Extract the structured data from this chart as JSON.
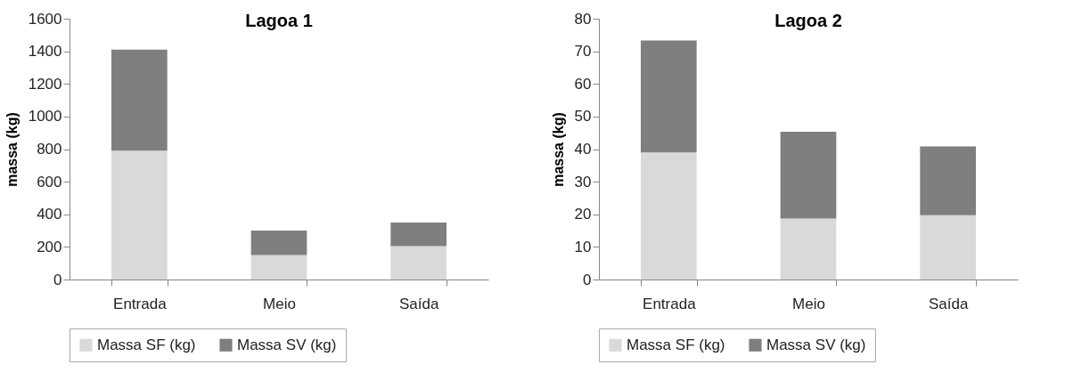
{
  "chart_data": [
    {
      "type": "bar",
      "title": "Lagoa 1",
      "ylabel": "massa (kg)",
      "categories": [
        "Entrada",
        "Meio",
        "Saída"
      ],
      "stacked": true,
      "ylim": [
        0,
        1600
      ],
      "yticks": [
        0,
        200,
        400,
        600,
        800,
        1000,
        1200,
        1400,
        1600
      ],
      "legend": "bottom",
      "series": [
        {
          "name": "Massa SF (kg)",
          "color": "#d9d9d9",
          "values": [
            790,
            150,
            205
          ]
        },
        {
          "name": "Massa SV (kg)",
          "color": "#7f7f7f",
          "values": [
            620,
            150,
            145
          ]
        }
      ]
    },
    {
      "type": "bar",
      "title": "Lagoa 2",
      "ylabel": "massa (kg)",
      "categories": [
        "Entrada",
        "Meio",
        "Saída"
      ],
      "stacked": true,
      "ylim": [
        0,
        80
      ],
      "yticks": [
        0,
        10,
        20,
        30,
        40,
        50,
        60,
        70,
        80
      ],
      "legend": "bottom",
      "series": [
        {
          "name": "Massa SF (kg)",
          "color": "#d9d9d9",
          "values": [
            39,
            18.7,
            19.7
          ]
        },
        {
          "name": "Massa SV (kg)",
          "color": "#7f7f7f",
          "values": [
            34.3,
            26.6,
            21.1
          ]
        }
      ]
    }
  ]
}
